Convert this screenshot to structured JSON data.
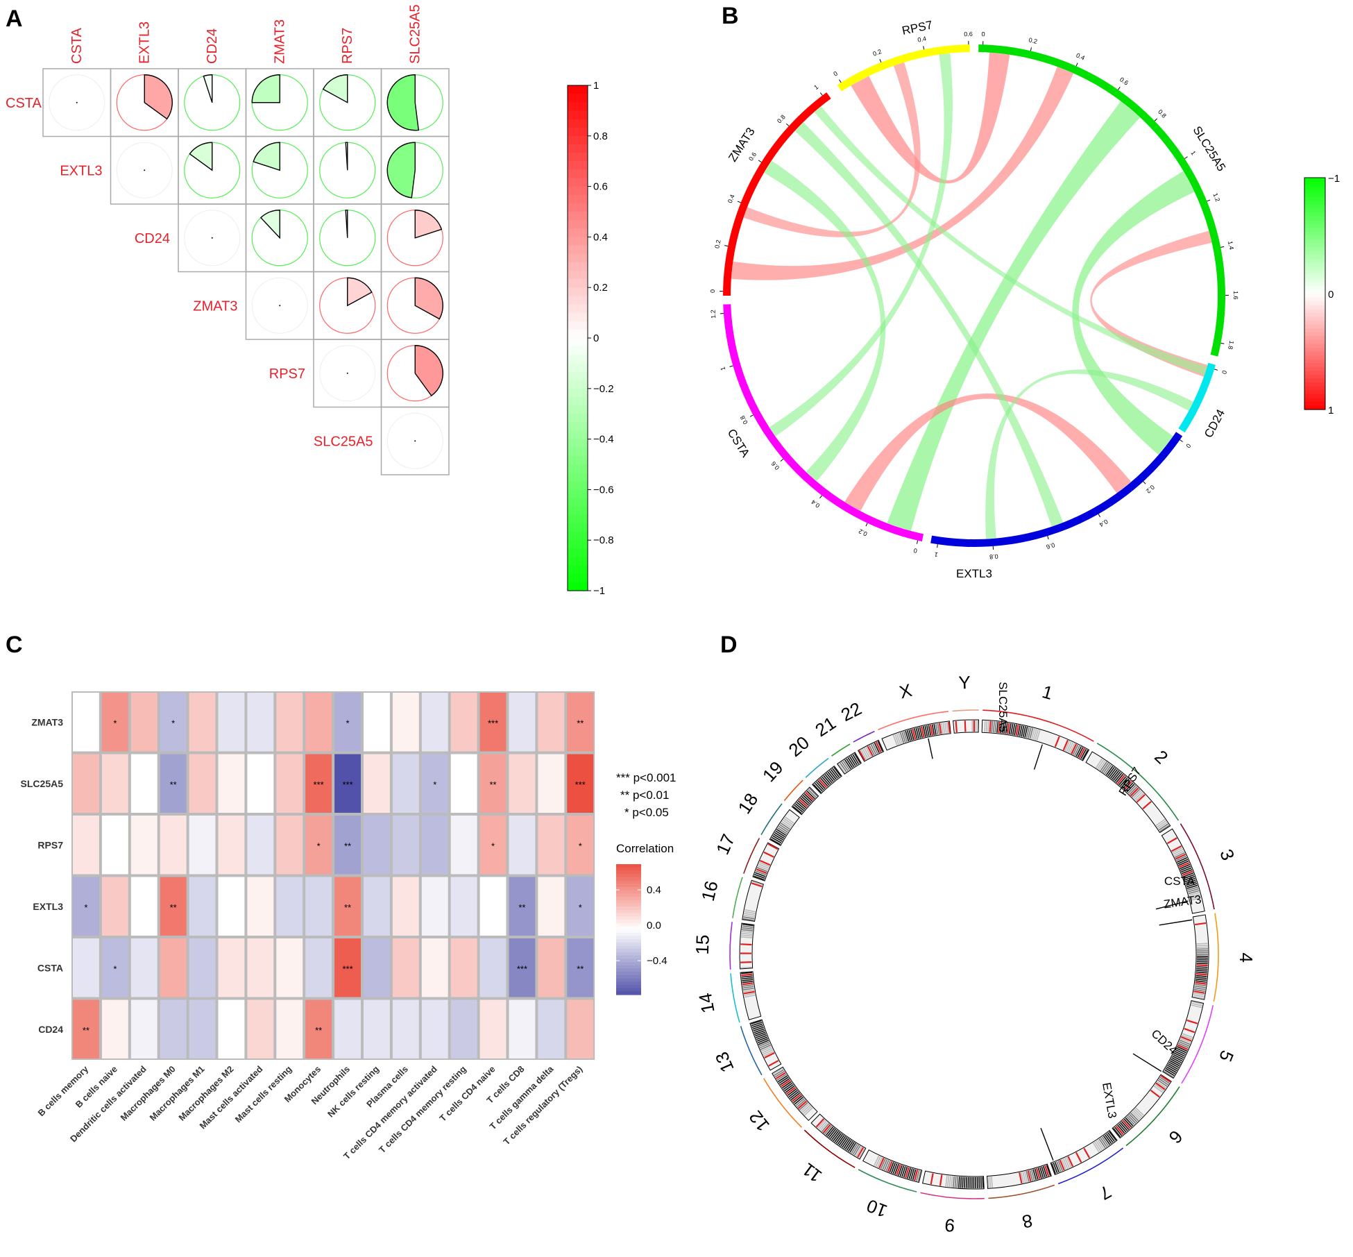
{
  "panels": {
    "a": "A",
    "b": "B",
    "c": "C",
    "d": "D"
  },
  "chart_data": [
    {
      "type": "heatmap",
      "title": "Gene correlation matrix (pie)",
      "genes": [
        "CSTA",
        "EXTL3",
        "CD24",
        "ZMAT3",
        "RPS7",
        "SLC25A5"
      ],
      "matrix": [
        [
          1,
          0.35,
          -0.05,
          -0.25,
          -0.17,
          -0.52
        ],
        [
          0.35,
          1,
          -0.15,
          -0.2,
          -0.01,
          -0.48
        ],
        [
          -0.05,
          -0.15,
          1,
          -0.12,
          -0.01,
          0.2
        ],
        [
          -0.25,
          -0.2,
          -0.12,
          1,
          0.17,
          0.33
        ],
        [
          -0.17,
          -0.01,
          -0.01,
          0.17,
          1,
          0.4
        ],
        [
          -0.52,
          -0.48,
          0.2,
          0.33,
          0.4,
          1
        ]
      ],
      "colorbar": {
        "ticks": [
          "1",
          "0.8",
          "0.6",
          "0.4",
          "0.2",
          "0",
          "−0.2",
          "−0.4",
          "−0.6",
          "−0.8",
          "−1"
        ],
        "pos_color": "#ff0000",
        "neg_color": "#00ff00"
      }
    },
    {
      "type": "chord",
      "title": "Gene correlation chord diagram",
      "sectors": [
        {
          "name": "RPS7",
          "color": "#ffff00",
          "ticks": [
            "0",
            "0.2",
            "0.4",
            "0.6"
          ]
        },
        {
          "name": "SLC25A5",
          "color": "#00e000",
          "ticks": [
            "0",
            "0.2",
            "0.4",
            "0.6",
            "0.8",
            "1",
            "1.2",
            "1.4",
            "1.6",
            "1.8"
          ]
        },
        {
          "name": "CD24",
          "color": "#00e8ee",
          "ticks": [
            "0"
          ]
        },
        {
          "name": "EXTL3",
          "color": "#0000dd",
          "ticks": [
            "0",
            "0.2",
            "0.4",
            "0.6",
            "0.8",
            "1"
          ]
        },
        {
          "name": "CSTA",
          "color": "#ff00ff",
          "ticks": [
            "0",
            "0.2",
            "0.4",
            "0.6",
            "0.8",
            "1",
            "1.2"
          ]
        },
        {
          "name": "ZMAT3",
          "color": "#ff0000",
          "ticks": [
            "0",
            "0.2",
            "0.4",
            "0.6",
            "0.8",
            "1"
          ]
        }
      ],
      "links": [
        {
          "from": "RPS7",
          "to": "SLC25A5",
          "value": 0.4
        },
        {
          "from": "ZMAT3",
          "to": "SLC25A5",
          "value": 0.33
        },
        {
          "from": "ZMAT3",
          "to": "RPS7",
          "value": 0.17
        },
        {
          "from": "CSTA",
          "to": "SLC25A5",
          "value": -0.52
        },
        {
          "from": "EXTL3",
          "to": "SLC25A5",
          "value": -0.48
        },
        {
          "from": "CSTA",
          "to": "EXTL3",
          "value": 0.35
        },
        {
          "from": "CD24",
          "to": "SLC25A5",
          "value": 0.2
        },
        {
          "from": "CSTA",
          "to": "ZMAT3",
          "value": -0.25
        },
        {
          "from": "EXTL3",
          "to": "ZMAT3",
          "value": -0.2
        },
        {
          "from": "CSTA",
          "to": "RPS7",
          "value": -0.17
        },
        {
          "from": "EXTL3",
          "to": "CD24",
          "value": -0.15
        },
        {
          "from": "CD24",
          "to": "ZMAT3",
          "value": -0.12
        }
      ],
      "colorbar": {
        "ticks": [
          "−1",
          "0",
          "1"
        ],
        "neg_color": "#00ff00",
        "pos_color": "#ff0000"
      }
    },
    {
      "type": "heatmap",
      "title": "Gene vs immune cell correlation",
      "rows": [
        "ZMAT3",
        "SLC25A5",
        "RPS7",
        "EXTL3",
        "CSTA",
        "CD24"
      ],
      "columns": [
        "B cells memory",
        "B cells naive",
        "Dendritic cells activated",
        "Macrophages M0",
        "Macrophages M1",
        "Macrophages M2",
        "Mast cells activated",
        "Mast cells resting",
        "Monocytes",
        "Neutrophils",
        "NK cells resting",
        "Plasma cells",
        "T cells CD4 memory activated",
        "T cells CD4 memory resting",
        "T cells CD4 naive",
        "T cells CD8",
        "T cells gamma delta",
        "T cells regulatory (Tregs)"
      ],
      "values": [
        [
          0.0,
          0.4,
          0.25,
          -0.25,
          0.2,
          -0.1,
          -0.1,
          0.2,
          0.3,
          -0.3,
          0.0,
          0.05,
          -0.1,
          0.2,
          0.5,
          -0.1,
          0.2,
          0.4
        ],
        [
          0.25,
          0.15,
          0.0,
          -0.35,
          0.2,
          0.05,
          0.0,
          0.2,
          0.55,
          -0.65,
          0.1,
          -0.15,
          -0.25,
          0.0,
          0.35,
          0.15,
          0.05,
          0.65
        ],
        [
          0.1,
          0.0,
          0.05,
          0.1,
          -0.05,
          0.1,
          -0.1,
          0.2,
          0.35,
          -0.35,
          -0.25,
          -0.2,
          -0.25,
          -0.05,
          0.3,
          -0.1,
          0.2,
          0.3
        ],
        [
          -0.3,
          0.2,
          0.0,
          0.5,
          -0.15,
          0.0,
          0.05,
          -0.15,
          -0.15,
          0.45,
          -0.15,
          0.1,
          -0.05,
          -0.1,
          0.0,
          -0.4,
          0.05,
          -0.3
        ],
        [
          -0.1,
          -0.25,
          -0.1,
          0.3,
          -0.2,
          0.1,
          0.1,
          0.05,
          -0.15,
          0.6,
          -0.25,
          0.2,
          0.05,
          0.2,
          -0.15,
          -0.45,
          0.25,
          -0.4
        ],
        [
          0.45,
          0.05,
          -0.05,
          -0.2,
          -0.2,
          0.0,
          0.15,
          0.05,
          0.45,
          -0.1,
          -0.1,
          -0.1,
          -0.1,
          -0.2,
          0.1,
          -0.05,
          -0.15,
          0.25
        ]
      ],
      "stars": [
        [
          "",
          "*",
          "",
          "*",
          "",
          "",
          "",
          "",
          "",
          "*",
          "",
          "",
          "",
          "",
          "***",
          "",
          "",
          "**"
        ],
        [
          "",
          "",
          "",
          "**",
          "",
          "",
          "",
          "",
          "***",
          "***",
          "",
          "",
          "*",
          "",
          "**",
          "",
          "",
          "***"
        ],
        [
          "",
          "",
          "",
          "",
          "",
          "",
          "",
          "",
          "*",
          "**",
          "",
          "",
          "",
          "",
          "*",
          "",
          "",
          "*"
        ],
        [
          "*",
          "",
          "",
          "**",
          "",
          "",
          "",
          "",
          "",
          "**",
          "",
          "",
          "",
          "",
          "",
          "**",
          "",
          "*"
        ],
        [
          "",
          "*",
          "",
          "",
          "",
          "",
          "",
          "",
          "",
          "***",
          "",
          "",
          "",
          "",
          "",
          "***",
          "",
          "**"
        ],
        [
          "**",
          "",
          "",
          "",
          "",
          "",
          "",
          "",
          "**",
          "",
          "",
          "",
          "",
          "",
          "",
          "",
          "",
          ""
        ]
      ],
      "legend": {
        "sig": [
          "*** p<0.001",
          "** p<0.01",
          "* p<0.05"
        ],
        "title": "Correlation",
        "ticks": [
          "0.4",
          "0.0",
          "−0.4"
        ]
      }
    },
    {
      "type": "chromosome-ideogram",
      "title": "Genomic locations",
      "chromosomes": [
        "1",
        "2",
        "3",
        "4",
        "5",
        "6",
        "7",
        "8",
        "9",
        "10",
        "11",
        "12",
        "13",
        "14",
        "15",
        "16",
        "17",
        "18",
        "19",
        "20",
        "21",
        "22",
        "X",
        "Y"
      ],
      "genes": [
        {
          "name": "SLC25A5",
          "chrom": "X"
        },
        {
          "name": "RPS7",
          "chrom": "2"
        },
        {
          "name": "CSTA",
          "chrom": "3"
        },
        {
          "name": "ZMAT3",
          "chrom": "3"
        },
        {
          "name": "CD24",
          "chrom": "6"
        },
        {
          "name": "EXTL3",
          "chrom": "8"
        }
      ]
    }
  ]
}
